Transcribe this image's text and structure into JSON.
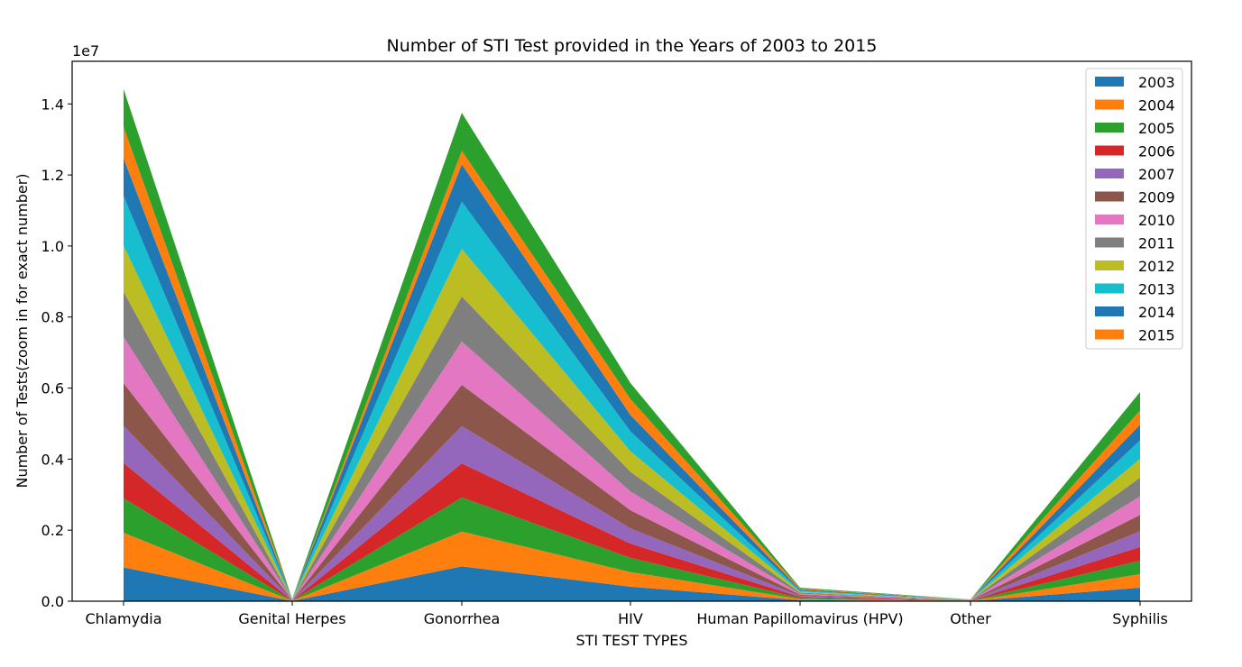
{
  "chart_data": {
    "type": "area",
    "stacked": true,
    "title": "Number of STI Test provided in the Years of 2003 to 2015",
    "xlabel": "STI TEST TYPES",
    "ylabel": "Number of Tests(zoom in for exact number)",
    "y_offset_label": "1e7",
    "ylim": [
      0,
      15200000
    ],
    "yticks": [
      0,
      2000000,
      4000000,
      6000000,
      8000000,
      10000000,
      12000000,
      14000000
    ],
    "ytick_labels": [
      "0.0",
      "0.2",
      "0.4",
      "0.6",
      "0.8",
      "1.0",
      "1.2",
      "1.4"
    ],
    "categories": [
      "Chlamydia",
      "Genital Herpes",
      "Gonorrhea",
      "HIV",
      "Human Papillomavirus (HPV)",
      "Other",
      "Syphilis"
    ],
    "legend_position": "upper-right",
    "series": [
      {
        "name": "2003",
        "color": "#1f77b4",
        "values": [
          950000,
          5000,
          980000,
          410000,
          30000,
          4000,
          380000
        ]
      },
      {
        "name": "2004",
        "color": "#ff7f0e",
        "values": [
          980000,
          5000,
          980000,
          410000,
          30000,
          4000,
          380000
        ]
      },
      {
        "name": "2005",
        "color": "#2ca02c",
        "values": [
          970000,
          5000,
          960000,
          400000,
          30000,
          4000,
          380000
        ]
      },
      {
        "name": "2006",
        "color": "#d62728",
        "values": [
          990000,
          5000,
          960000,
          400000,
          30000,
          4000,
          390000
        ]
      },
      {
        "name": "2007",
        "color": "#9467bd",
        "values": [
          1050000,
          5000,
          1050000,
          430000,
          30000,
          4000,
          440000
        ]
      },
      {
        "name": "2009",
        "color": "#8c564b",
        "values": [
          1200000,
          5000,
          1160000,
          510000,
          30000,
          4000,
          460000
        ]
      },
      {
        "name": "2010",
        "color": "#e377c2",
        "values": [
          1300000,
          5000,
          1220000,
          530000,
          30000,
          4000,
          520000
        ]
      },
      {
        "name": "2011",
        "color": "#7f7f7f",
        "values": [
          1270000,
          5000,
          1270000,
          550000,
          30000,
          4000,
          530000
        ]
      },
      {
        "name": "2012",
        "color": "#bcbd22",
        "values": [
          1300000,
          5000,
          1340000,
          580000,
          30000,
          4000,
          530000
        ]
      },
      {
        "name": "2013",
        "color": "#17becf",
        "values": [
          1400000,
          5000,
          1330000,
          560000,
          30000,
          4000,
          520000
        ]
      },
      {
        "name": "2014",
        "color": "#1f77b4",
        "values": [
          1060000,
          5000,
          1050000,
          460000,
          30000,
          4000,
          440000
        ]
      },
      {
        "name": "2015",
        "color": "#ff7f0e",
        "values": [
          880000,
          5000,
          380000,
          450000,
          25000,
          3000,
          400000
        ]
      },
      {
        "name": "",
        "color": "#2ca02c",
        "values": [
          1070000,
          5000,
          1070000,
          450000,
          25000,
          3000,
          520000
        ]
      }
    ]
  }
}
